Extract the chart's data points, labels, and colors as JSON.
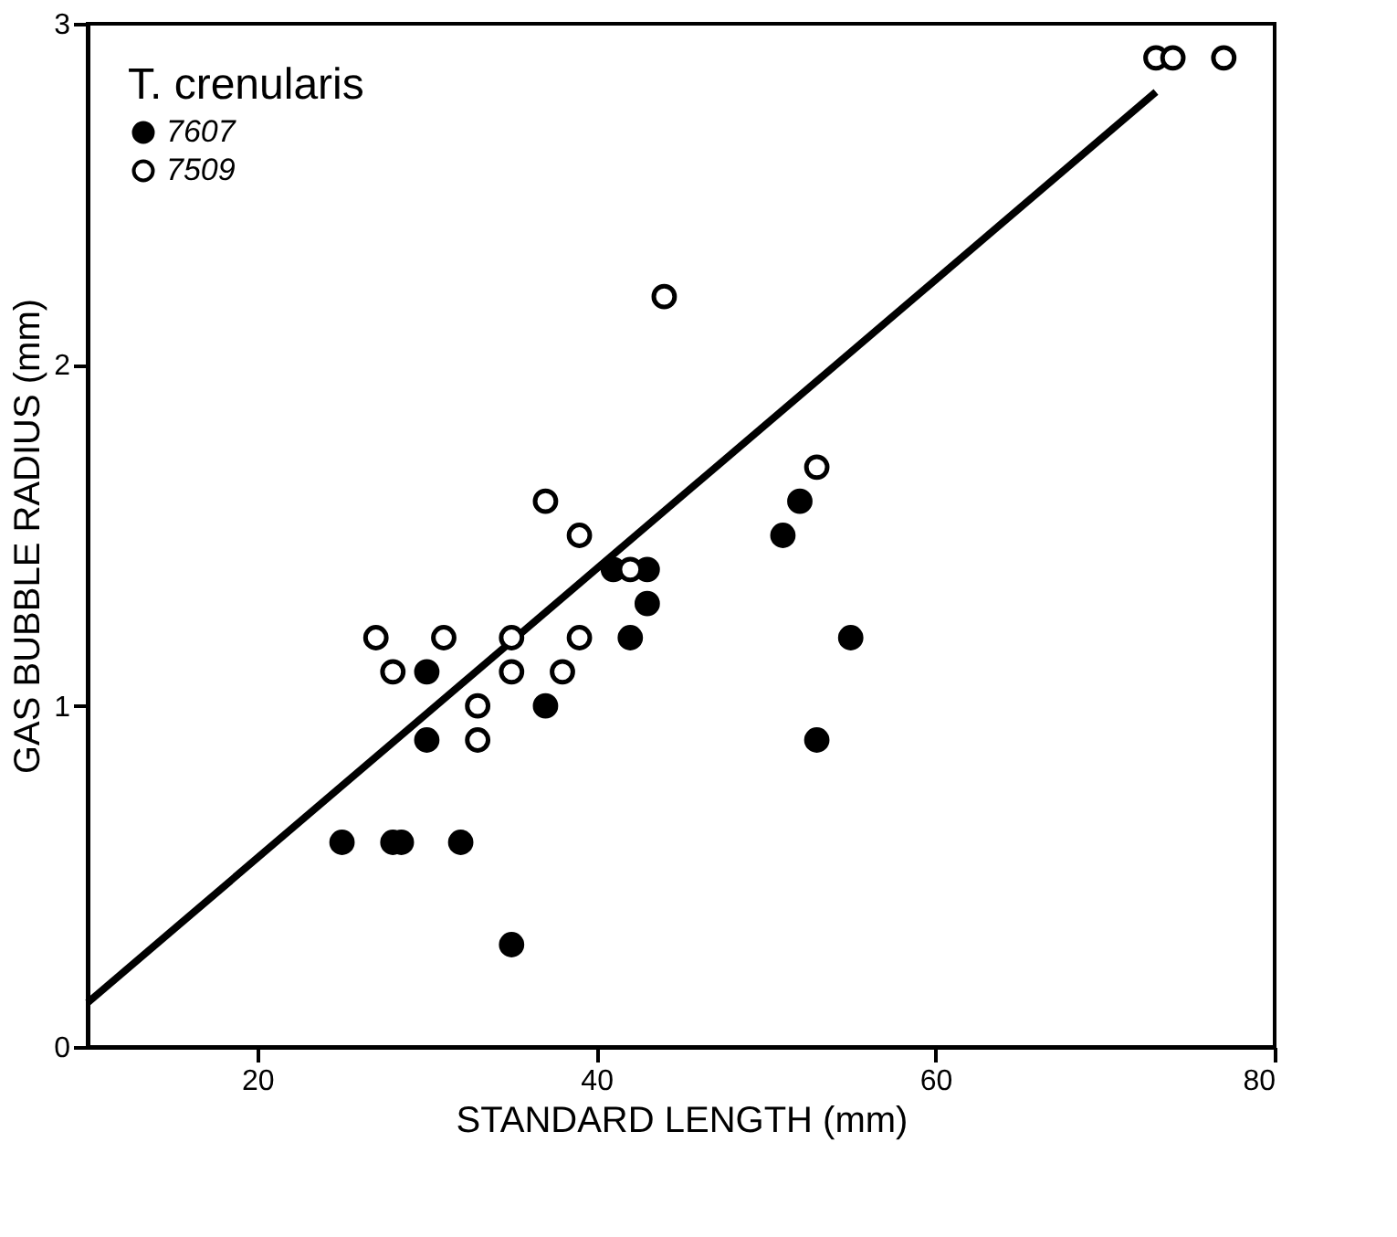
{
  "chart_data": {
    "type": "scatter",
    "xlabel": "STANDARD LENGTH (mm)",
    "ylabel": "GAS BUBBLE RADIUS (mm)",
    "legend_title": "T. crenularis",
    "xlim": [
      10,
      80
    ],
    "ylim": [
      0,
      3
    ],
    "xticks": [
      20,
      40,
      60,
      80
    ],
    "yticks": [
      0,
      1,
      2,
      3
    ],
    "grid": false,
    "legend": "top left",
    "series": [
      {
        "name": "7607",
        "color": "#000000",
        "marker": "circle",
        "x": [
          25,
          28,
          28.5,
          32,
          30,
          30,
          35,
          37,
          41,
          42,
          43,
          43,
          51,
          52,
          55,
          53
        ],
        "values": [
          0.6,
          0.6,
          0.6,
          0.6,
          0.9,
          1.1,
          0.3,
          1.0,
          1.4,
          1.2,
          1.4,
          1.3,
          1.5,
          1.6,
          1.2,
          0.9
        ]
      },
      {
        "name": "7509",
        "color": "#ffffff",
        "marker": "circle",
        "x": [
          27,
          28,
          31,
          33,
          33,
          35,
          35,
          37,
          38,
          39,
          39,
          42,
          44,
          53,
          73,
          74,
          77
        ],
        "values": [
          1.2,
          1.1,
          1.2,
          1.0,
          0.9,
          1.2,
          1.1,
          1.6,
          1.1,
          1.5,
          1.2,
          1.4,
          2.2,
          1.7,
          2.9,
          2.9,
          2.9
        ]
      },
      {
        "type": "line",
        "color": "#000000",
        "marker": "none",
        "x": [
          10,
          73
        ],
        "values": [
          0.13,
          2.8
        ]
      }
    ]
  }
}
